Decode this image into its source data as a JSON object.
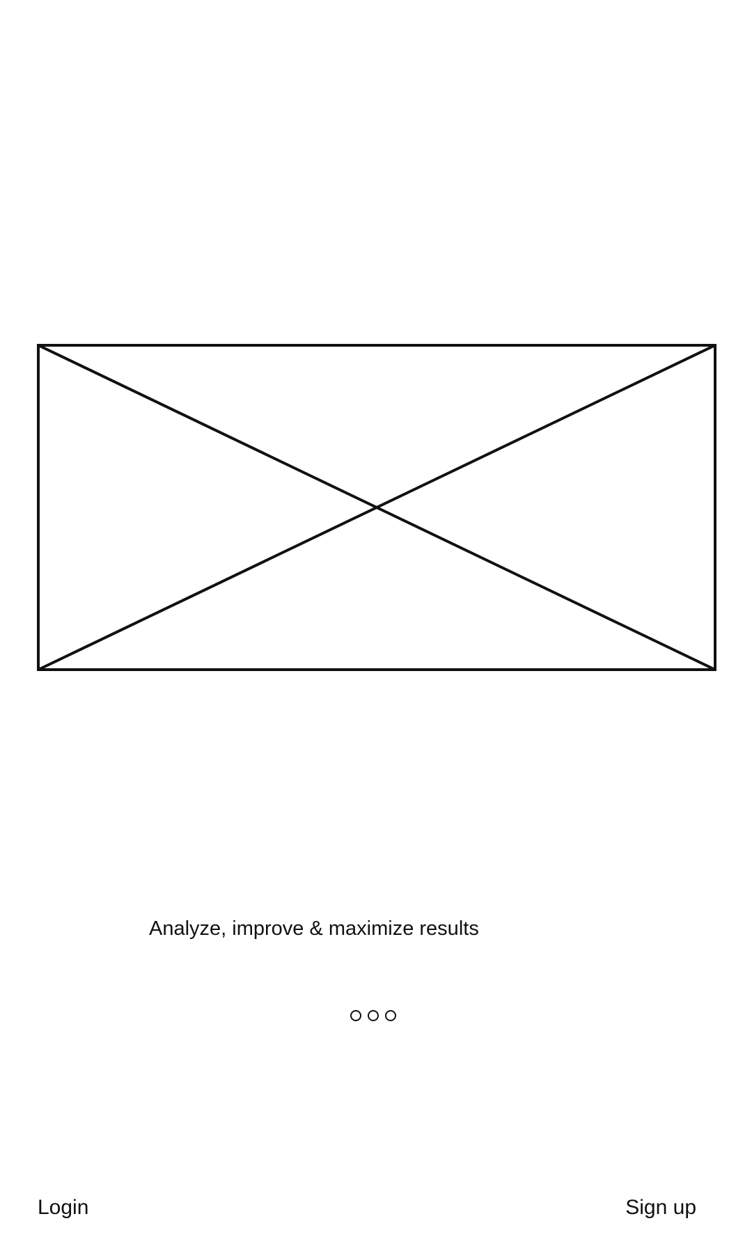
{
  "hero": {
    "image_icon": "image-placeholder-icon"
  },
  "onboarding": {
    "tagline": "Analyze, improve & maximize results",
    "pager": {
      "page_count": 3
    }
  },
  "footer": {
    "login_label": "Login",
    "signup_label": "Sign up"
  },
  "colors": {
    "stroke": "#111111",
    "background": "#ffffff"
  }
}
